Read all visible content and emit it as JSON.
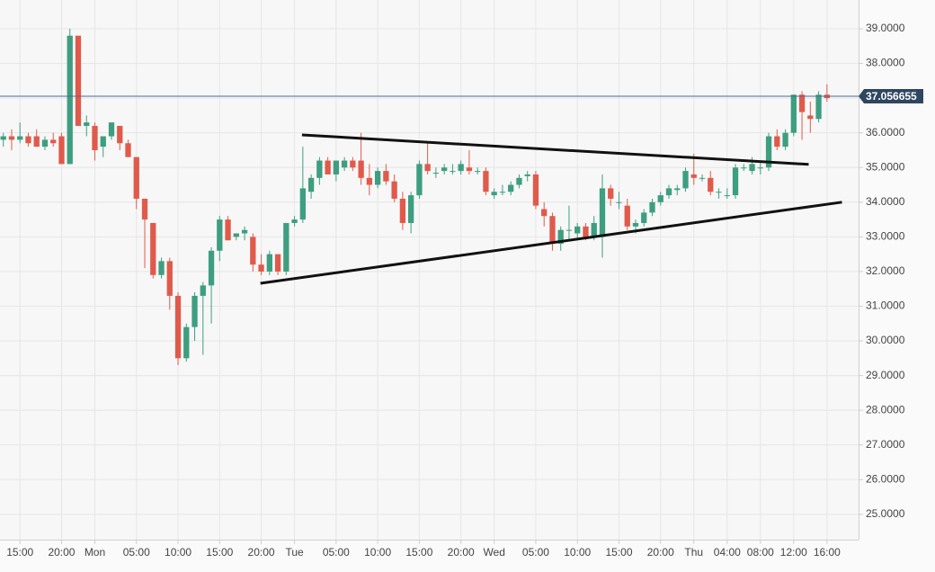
{
  "chart_data": {
    "type": "candlestick",
    "x": [
      -2,
      -1,
      0,
      1,
      2,
      3,
      4,
      5,
      6,
      7,
      8,
      9,
      10,
      11,
      12,
      13,
      14,
      15,
      16,
      17,
      18,
      19,
      20,
      21,
      22,
      23,
      24,
      25,
      26,
      27,
      28,
      29,
      30,
      31,
      32,
      33,
      34,
      35,
      36,
      37,
      38,
      39,
      40,
      41,
      42,
      43,
      44,
      45,
      46,
      47,
      48,
      49,
      50,
      51,
      52,
      53,
      54,
      55,
      56,
      57,
      58,
      59,
      60,
      61,
      62,
      63,
      64,
      65,
      66,
      67,
      68,
      69,
      70,
      71,
      72,
      73,
      74,
      75,
      76,
      77,
      78,
      79,
      80,
      81,
      82,
      83,
      84,
      85,
      86,
      87,
      88,
      89,
      90,
      91,
      92,
      93,
      94,
      95,
      96,
      97
    ],
    "open": [
      35.8,
      35.9,
      35.8,
      35.9,
      35.9,
      35.6,
      35.8,
      35.9,
      35.1,
      38.8,
      36.2,
      36.2,
      35.6,
      35.9,
      36.2,
      35.7,
      35.3,
      34.1,
      33.4,
      31.9,
      32.3,
      31.3,
      29.5,
      30.4,
      31.3,
      31.6,
      32.6,
      33.5,
      33.0,
      33.1,
      33.0,
      32.2,
      32.0,
      32.5,
      32.0,
      33.4,
      33.5,
      34.3,
      34.7,
      35.2,
      34.8,
      35.0,
      35.2,
      35.2,
      34.7,
      34.5,
      34.9,
      34.6,
      34.1,
      33.4,
      34.2,
      35.1,
      34.85,
      34.9,
      34.9,
      34.9,
      35.0,
      34.9,
      34.9,
      34.2,
      34.3,
      34.3,
      34.5,
      34.75,
      34.8,
      33.8,
      33.6,
      32.8,
      33.2,
      33.1,
      33.3,
      33.0,
      33.0,
      34.4,
      34.0,
      33.9,
      33.3,
      33.4,
      33.7,
      34.0,
      34.2,
      34.35,
      34.4,
      34.8,
      34.7,
      34.7,
      34.3,
      34.2,
      34.2,
      35.0,
      34.9,
      35.0,
      35.0,
      35.9,
      35.6,
      36.0,
      37.1,
      36.5,
      36.4,
      37.1
    ],
    "high": [
      36.0,
      36.1,
      36.3,
      36.0,
      36.1,
      35.9,
      36.0,
      36.0,
      39.0,
      38.8,
      36.5,
      36.3,
      35.9,
      36.3,
      36.2,
      35.8,
      35.3,
      34.1,
      33.4,
      32.4,
      32.4,
      31.4,
      30.5,
      31.4,
      31.7,
      32.7,
      33.6,
      33.6,
      33.1,
      33.3,
      33.1,
      32.5,
      32.6,
      32.5,
      33.4,
      33.6,
      35.6,
      34.8,
      35.3,
      35.3,
      35.2,
      35.3,
      35.3,
      36.0,
      35.1,
      35.0,
      35.1,
      34.8,
      34.3,
      34.3,
      35.2,
      35.7,
      35.0,
      35.1,
      35.1,
      35.2,
      35.5,
      35.0,
      35.0,
      34.4,
      34.5,
      34.6,
      34.8,
      34.9,
      34.9,
      34.0,
      33.7,
      33.3,
      33.9,
      33.4,
      33.4,
      33.6,
      34.8,
      34.5,
      34.3,
      34.1,
      33.5,
      33.8,
      34.1,
      34.3,
      34.5,
      34.5,
      35.0,
      35.4,
      34.8,
      34.9,
      34.4,
      34.4,
      35.1,
      35.1,
      35.3,
      35.2,
      36.0,
      36.1,
      36.1,
      37.1,
      37.2,
      36.9,
      37.2,
      37.4
    ],
    "low": [
      35.6,
      35.5,
      35.7,
      35.6,
      35.6,
      35.5,
      35.6,
      35.1,
      35.1,
      36.2,
      35.9,
      35.2,
      35.3,
      35.8,
      35.5,
      35.3,
      33.8,
      32.1,
      31.8,
      31.8,
      30.9,
      29.3,
      29.4,
      30.0,
      29.6,
      30.5,
      32.3,
      32.9,
      32.9,
      32.9,
      32.0,
      31.9,
      31.9,
      31.9,
      31.9,
      33.3,
      33.4,
      34.1,
      34.5,
      34.8,
      34.6,
      34.9,
      34.9,
      34.5,
      34.2,
      34.4,
      34.5,
      34.0,
      33.2,
      33.1,
      34.1,
      34.8,
      34.7,
      34.8,
      34.8,
      34.8,
      34.8,
      34.8,
      34.2,
      34.1,
      34.2,
      34.2,
      34.4,
      34.6,
      33.8,
      33.3,
      32.6,
      32.6,
      32.9,
      32.9,
      32.9,
      32.9,
      32.4,
      33.9,
      33.8,
      33.2,
      33.1,
      33.3,
      33.6,
      33.9,
      34.1,
      34.2,
      34.3,
      34.5,
      34.6,
      34.2,
      34.1,
      34.1,
      34.1,
      34.9,
      34.8,
      34.8,
      34.9,
      35.5,
      35.5,
      35.9,
      35.8,
      36.0,
      36.3,
      36.9
    ],
    "close": [
      35.9,
      35.8,
      35.9,
      35.7,
      35.6,
      35.8,
      35.7,
      35.1,
      38.8,
      36.2,
      36.3,
      35.5,
      35.9,
      36.3,
      35.7,
      35.3,
      34.1,
      33.5,
      31.9,
      32.3,
      31.3,
      29.5,
      30.4,
      31.3,
      31.6,
      32.6,
      33.5,
      32.9,
      33.1,
      33.2,
      32.2,
      32.0,
      32.5,
      32.0,
      33.4,
      33.5,
      34.4,
      34.7,
      35.2,
      34.8,
      35.2,
      35.2,
      35.0,
      34.7,
      34.5,
      34.9,
      34.6,
      34.1,
      33.4,
      34.2,
      35.1,
      34.9,
      34.85,
      35.0,
      34.9,
      35.1,
      34.9,
      34.9,
      34.3,
      34.3,
      34.3,
      34.5,
      34.7,
      34.8,
      33.9,
      33.6,
      32.8,
      33.2,
      33.2,
      33.3,
      33.0,
      33.4,
      34.4,
      34.1,
      34.0,
      33.3,
      33.4,
      33.7,
      34.0,
      34.2,
      34.4,
      34.4,
      34.9,
      34.7,
      34.7,
      34.3,
      34.3,
      34.2,
      35.0,
      35.0,
      35.1,
      35.0,
      35.9,
      35.6,
      36.0,
      37.1,
      36.6,
      36.4,
      37.1,
      37.0
    ],
    "up_color": "#3d9e80",
    "down_color": "#e05a4b",
    "xlim": [
      -2.4,
      100.8
    ],
    "ylim": [
      24.27,
      39.83
    ],
    "xticks": [
      {
        "value": 0,
        "label": "15:00"
      },
      {
        "value": 5,
        "label": "20:00"
      },
      {
        "value": 9,
        "label": "Mon"
      },
      {
        "value": 14,
        "label": "05:00"
      },
      {
        "value": 19,
        "label": "10:00"
      },
      {
        "value": 24,
        "label": "15:00"
      },
      {
        "value": 29,
        "label": "20:00"
      },
      {
        "value": 33,
        "label": "Tue"
      },
      {
        "value": 38,
        "label": "05:00"
      },
      {
        "value": 43,
        "label": "10:00"
      },
      {
        "value": 48,
        "label": "15:00"
      },
      {
        "value": 53,
        "label": "20:00"
      },
      {
        "value": 57,
        "label": "Wed"
      },
      {
        "value": 62,
        "label": "05:00"
      },
      {
        "value": 67,
        "label": "10:00"
      },
      {
        "value": 72,
        "label": "15:00"
      },
      {
        "value": 77,
        "label": "20:00"
      },
      {
        "value": 81,
        "label": "Thu"
      },
      {
        "value": 85,
        "label": "04:00"
      },
      {
        "value": 89,
        "label": "08:00"
      },
      {
        "value": 93,
        "label": "12:00"
      },
      {
        "value": 97,
        "label": "16:00"
      }
    ],
    "yticks": [
      {
        "value": 25,
        "label": "25.0000"
      },
      {
        "value": 26,
        "label": "26.0000"
      },
      {
        "value": 27,
        "label": "27.0000"
      },
      {
        "value": 28,
        "label": "28.0000"
      },
      {
        "value": 29,
        "label": "29.0000"
      },
      {
        "value": 30,
        "label": "30.0000"
      },
      {
        "value": 31,
        "label": "31.0000"
      },
      {
        "value": 32,
        "label": "32.0000"
      },
      {
        "value": 33,
        "label": "33.0000"
      },
      {
        "value": 34,
        "label": "34.0000"
      },
      {
        "value": 35,
        "label": "35.0000"
      },
      {
        "value": 36,
        "label": "36.0000"
      },
      {
        "value": 37,
        "label": "37.0000"
      },
      {
        "value": 38,
        "label": "38.0000"
      },
      {
        "value": 39,
        "label": "39.0000"
      }
    ],
    "grid": true,
    "price_line": 37.056655,
    "price_line_color": "#4a6a9a",
    "trendlines": [
      {
        "x": [
          33.9,
          94.8
        ],
        "y": [
          35.94,
          35.09
        ]
      },
      {
        "x": [
          28.9,
          98.8
        ],
        "y": [
          31.66,
          34.0
        ]
      }
    ]
  }
}
